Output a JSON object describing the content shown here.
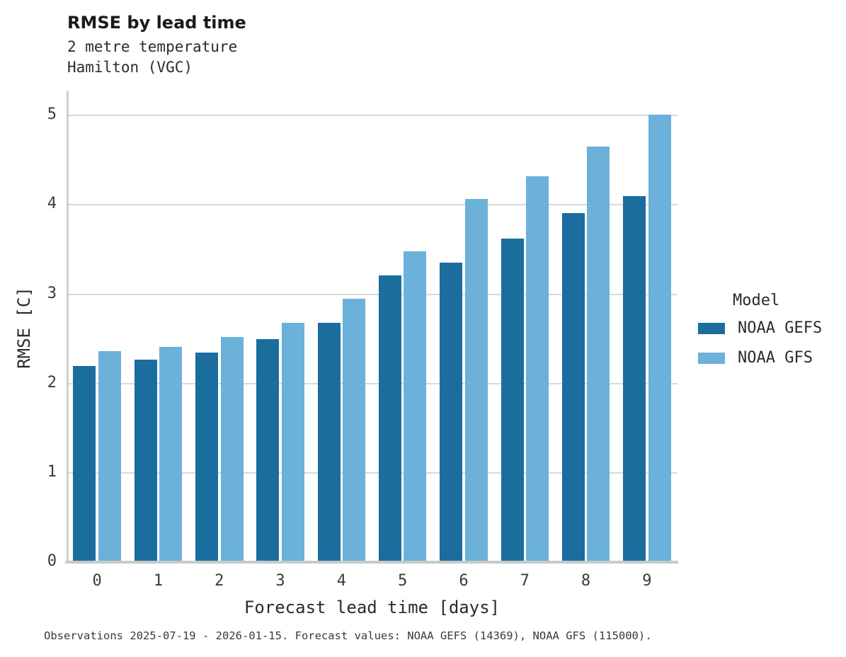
{
  "header": {
    "title": "RMSE by lead time",
    "subtitle": "2 metre temperature\nHamilton (VGC)"
  },
  "axes": {
    "x_title": "Forecast lead time [days]",
    "y_title": "RMSE [C]"
  },
  "legend": {
    "title": "Model",
    "entries": [
      {
        "label": "NOAA GEFS",
        "color": "#1b6d9e"
      },
      {
        "label": "NOAA GFS",
        "color": "#6bb1d9"
      }
    ]
  },
  "caption": "Observations 2025-07-19 - 2026-01-15. Forecast values: NOAA GEFS (14369), NOAA GFS (115000).",
  "chart_data": {
    "type": "bar",
    "title": "RMSE by lead time",
    "subtitle": "2 metre temperature, Hamilton (VGC)",
    "xlabel": "Forecast lead time [days]",
    "ylabel": "RMSE [C]",
    "categories": [
      "0",
      "1",
      "2",
      "3",
      "4",
      "5",
      "6",
      "7",
      "8",
      "9"
    ],
    "series": [
      {
        "name": "NOAA GEFS",
        "color": "#1b6d9e",
        "values": [
          2.2,
          2.27,
          2.35,
          2.5,
          2.68,
          3.21,
          3.35,
          3.62,
          3.91,
          4.1
        ]
      },
      {
        "name": "NOAA GFS",
        "color": "#6bb1d9",
        "values": [
          2.36,
          2.41,
          2.52,
          2.68,
          2.95,
          3.48,
          4.07,
          4.32,
          4.65,
          5.01
        ]
      }
    ],
    "ylim": [
      0,
      5.28
    ],
    "yticks": [
      0,
      1,
      2,
      3,
      4,
      5
    ],
    "grid": true,
    "grid_axis": "y",
    "legend_position": "right",
    "legend_title": "Model"
  }
}
